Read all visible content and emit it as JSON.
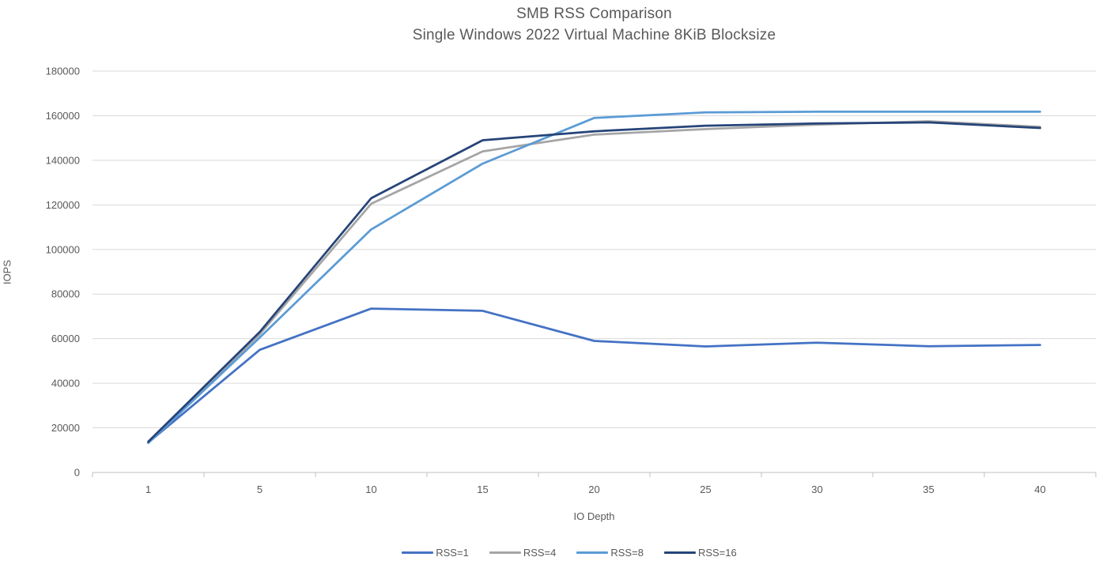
{
  "chart_data": {
    "type": "line",
    "title": "SMB RSS Comparison",
    "subtitle": "Single Windows 2022 Virtual Machine 8KiB Blocksize",
    "xlabel": "IO Depth",
    "ylabel": "IOPS",
    "categories": [
      "1",
      "5",
      "10",
      "15",
      "20",
      "25",
      "30",
      "35",
      "40"
    ],
    "y_ticks": [
      0,
      20000,
      40000,
      60000,
      80000,
      100000,
      120000,
      140000,
      160000,
      180000
    ],
    "ylim": [
      0,
      180000
    ],
    "grid": true,
    "legend_position": "bottom",
    "series": [
      {
        "name": "RSS=1",
        "color": "#4472C4",
        "values": [
          13400,
          55000,
          73500,
          72500,
          59000,
          56500,
          58200,
          56600,
          57200
        ]
      },
      {
        "name": "RSS=4",
        "color": "#A5A5A5",
        "values": [
          13600,
          62000,
          120500,
          144000,
          151500,
          154000,
          156000,
          157500,
          155000
        ]
      },
      {
        "name": "RSS=8",
        "color": "#5B9BD5",
        "values": [
          13200,
          60500,
          109000,
          138500,
          159000,
          161500,
          161800,
          161800,
          161800
        ]
      },
      {
        "name": "RSS=16",
        "color": "#264478",
        "values": [
          13800,
          63000,
          123000,
          149000,
          153000,
          155500,
          156500,
          157000,
          154500
        ]
      }
    ],
    "styles": {
      "gridline_color": "#D9D9D9",
      "axis_line_color": "#BFBFBF",
      "text_color": "#595959",
      "line_width": 2.75
    }
  }
}
